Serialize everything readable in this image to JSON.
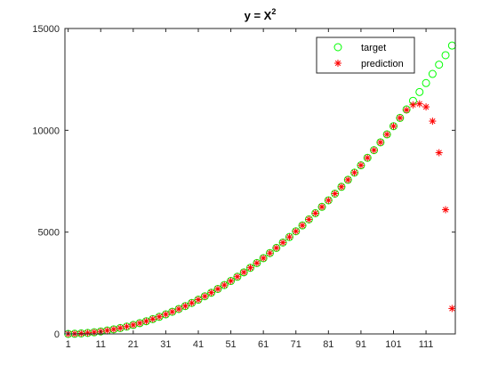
{
  "chart_data": {
    "type": "scatter",
    "title": "y = X",
    "title_superscript": "2",
    "xlabel": "",
    "ylabel": "",
    "xlim": [
      0,
      120
    ],
    "ylim": [
      0,
      15000
    ],
    "xticks": [
      1,
      11,
      21,
      31,
      41,
      51,
      61,
      71,
      81,
      91,
      101,
      111
    ],
    "yticks": [
      0,
      5000,
      10000,
      15000
    ],
    "grid": false,
    "legend_position": "top-right",
    "series": [
      {
        "name": "target",
        "marker": "circle",
        "color": "#00ff00",
        "x": [
          1,
          3,
          5,
          7,
          9,
          11,
          13,
          15,
          17,
          19,
          21,
          23,
          25,
          27,
          29,
          31,
          33,
          35,
          37,
          39,
          41,
          43,
          45,
          47,
          49,
          51,
          53,
          55,
          57,
          59,
          61,
          63,
          65,
          67,
          69,
          71,
          73,
          75,
          77,
          79,
          81,
          83,
          85,
          87,
          89,
          91,
          93,
          95,
          97,
          99,
          101,
          103,
          105,
          107,
          109,
          111,
          113,
          115,
          117,
          119
        ],
        "y": [
          1,
          9,
          25,
          49,
          81,
          121,
          169,
          225,
          289,
          361,
          441,
          529,
          625,
          729,
          841,
          961,
          1089,
          1225,
          1369,
          1521,
          1681,
          1849,
          2025,
          2209,
          2401,
          2601,
          2809,
          3025,
          3249,
          3481,
          3721,
          3969,
          4225,
          4489,
          4761,
          5041,
          5329,
          5625,
          5929,
          6241,
          6561,
          6889,
          7225,
          7569,
          7921,
          8281,
          8649,
          9025,
          9409,
          9801,
          10201,
          10609,
          11025,
          11449,
          11881,
          12321,
          12769,
          13225,
          13689,
          14161
        ]
      },
      {
        "name": "prediction",
        "marker": "asterisk",
        "color": "#ff0000",
        "x": [
          1,
          3,
          5,
          7,
          9,
          11,
          13,
          15,
          17,
          19,
          21,
          23,
          25,
          27,
          29,
          31,
          33,
          35,
          37,
          39,
          41,
          43,
          45,
          47,
          49,
          51,
          53,
          55,
          57,
          59,
          61,
          63,
          65,
          67,
          69,
          71,
          73,
          75,
          77,
          79,
          81,
          83,
          85,
          87,
          89,
          91,
          93,
          95,
          97,
          99,
          101,
          103,
          105,
          107,
          109,
          111,
          113,
          115,
          117,
          119
        ],
        "y": [
          1,
          9,
          25,
          49,
          81,
          121,
          169,
          225,
          289,
          361,
          441,
          529,
          625,
          729,
          841,
          961,
          1089,
          1225,
          1369,
          1521,
          1681,
          1849,
          2025,
          2209,
          2401,
          2601,
          2809,
          3025,
          3249,
          3481,
          3721,
          3969,
          4225,
          4489,
          4761,
          5041,
          5329,
          5625,
          5929,
          6241,
          6561,
          6889,
          7225,
          7569,
          7921,
          8281,
          8649,
          9025,
          9409,
          9801,
          10201,
          10609,
          11000,
          11250,
          11300,
          11150,
          10450,
          8900,
          6100,
          1250
        ]
      }
    ]
  }
}
